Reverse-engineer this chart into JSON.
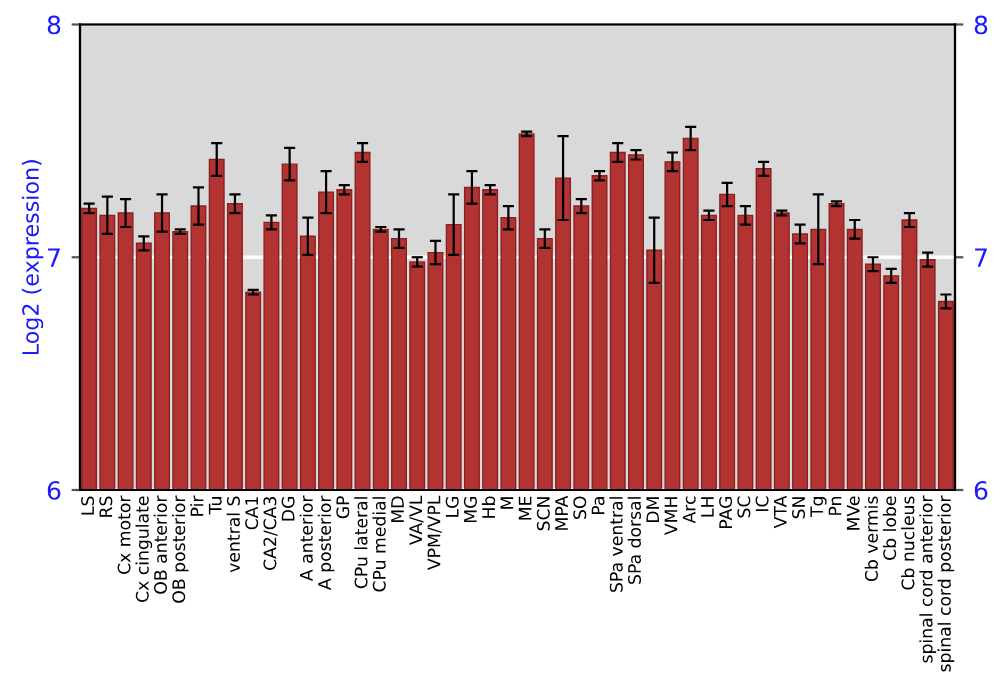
{
  "chart_data": {
    "type": "bar",
    "ylabel": "Log2 (expression)",
    "categories": [
      "LS",
      "RS",
      "Cx motor",
      "Cx cingulate",
      "OB anterior",
      "OB posterior",
      "Pir",
      "Tu",
      "ventral S",
      "CA1",
      "CA2/CA3",
      "DG",
      "A anterior",
      "A posterior",
      "GP",
      "CPu lateral",
      "CPu medial",
      "MD",
      "VA/VL",
      "VPM/VPL",
      "LG",
      "MG",
      "Hb",
      "M",
      "ME",
      "SCN",
      "MPA",
      "SO",
      "Pa",
      "SPa ventral",
      "SPa dorsal",
      "DM",
      "VMH",
      "Arc",
      "LH",
      "PAG",
      "SC",
      "IC",
      "VTA",
      "SN",
      "Tg",
      "Pn",
      "MVe",
      "Cb vermis",
      "Cb lobe",
      "Cb nucleus",
      "spinal cord anterior",
      "spinal cord posterior"
    ],
    "values": [
      7.21,
      7.18,
      7.19,
      7.06,
      7.19,
      7.11,
      7.22,
      7.42,
      7.23,
      6.85,
      7.15,
      7.4,
      7.09,
      7.28,
      7.29,
      7.45,
      7.12,
      7.08,
      6.98,
      7.02,
      7.14,
      7.3,
      7.29,
      7.17,
      7.53,
      7.08,
      7.34,
      7.22,
      7.35,
      7.45,
      7.44,
      7.03,
      7.41,
      7.51,
      7.18,
      7.27,
      7.18,
      7.38,
      7.19,
      7.1,
      7.12,
      7.23,
      7.12,
      6.97,
      6.92,
      7.16,
      6.99,
      6.81
    ],
    "errors": [
      0.02,
      0.08,
      0.06,
      0.03,
      0.08,
      0.01,
      0.08,
      0.07,
      0.04,
      0.01,
      0.03,
      0.07,
      0.08,
      0.09,
      0.02,
      0.04,
      0.01,
      0.04,
      0.02,
      0.05,
      0.13,
      0.07,
      0.02,
      0.05,
      0.01,
      0.04,
      0.18,
      0.03,
      0.02,
      0.04,
      0.02,
      0.14,
      0.04,
      0.05,
      0.02,
      0.05,
      0.04,
      0.03,
      0.01,
      0.04,
      0.15,
      0.01,
      0.04,
      0.03,
      0.03,
      0.03,
      0.03,
      0.03
    ],
    "color": "#b33333",
    "ylim": [
      6,
      8
    ],
    "yticks": [
      6,
      7,
      8
    ],
    "y2lim": [
      6,
      8
    ],
    "y2ticks": [
      6,
      7,
      8
    ],
    "grid": "y"
  }
}
